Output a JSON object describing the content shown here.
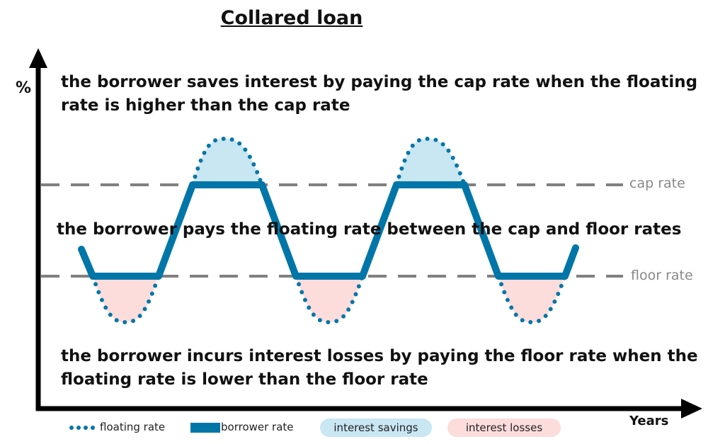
{
  "title": "Collared loan",
  "y_axis_label": "%",
  "x_axis_label": "Years",
  "annotations": {
    "top": "the borrower saves interest by paying the cap rate when the floating rate is higher than the cap rate",
    "middle": "the borrower pays the floating rate between the cap and floor rates",
    "bottom": "the borrower incurs interest losses by paying the floor rate when the floating rate is lower than the floor rate"
  },
  "lines": {
    "cap": "cap rate",
    "floor": "floor rate"
  },
  "legend": {
    "floating": "floating rate",
    "borrower": "borrower rate",
    "savings": "interest savings",
    "losses": "interest losses"
  },
  "colors": {
    "borrower": "#0076a8",
    "savings": "#c9e6f3",
    "losses": "#fddcdc",
    "reference": "#808080"
  }
}
